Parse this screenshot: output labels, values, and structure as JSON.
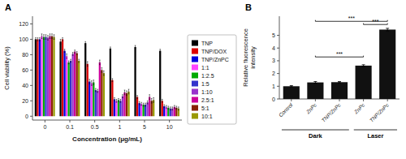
{
  "chart_data": [
    {
      "type": "bar",
      "categories": [
        "0",
        "0.1",
        "0.5",
        "1",
        "5",
        "10"
      ],
      "series": [
        {
          "name": "TNP",
          "color": "#000000",
          "values": [
            100,
            97,
            95,
            88,
            90,
            85
          ],
          "errors": [
            2,
            3,
            2,
            2,
            2,
            2
          ]
        },
        {
          "name": "TNP/DOX",
          "color": "#dd0000",
          "values": [
            100,
            100,
            68,
            47,
            25,
            20
          ],
          "errors": [
            2,
            2,
            3,
            2,
            2,
            2
          ]
        },
        {
          "name": "TNP/ZnPC",
          "color": "#0000dd",
          "values": [
            100,
            85,
            45,
            22,
            17,
            13
          ],
          "errors": [
            2,
            2,
            3,
            2,
            2,
            2
          ]
        },
        {
          "name": "1:1",
          "color": "#ff44ff",
          "values": [
            104,
            78,
            43,
            20,
            16,
            12
          ],
          "errors": [
            3,
            3,
            3,
            2,
            2,
            2
          ]
        },
        {
          "name": "1:2.5",
          "color": "#00aa00",
          "values": [
            103,
            70,
            44,
            21,
            15,
            11
          ],
          "errors": [
            3,
            2,
            3,
            2,
            2,
            2
          ]
        },
        {
          "name": "1:5",
          "color": "#3333cc",
          "values": [
            103,
            72,
            34,
            20,
            15,
            10
          ],
          "errors": [
            3,
            2,
            2,
            2,
            2,
            2
          ]
        },
        {
          "name": "1:10",
          "color": "#9933cc",
          "values": [
            102,
            81,
            33,
            26,
            18,
            10
          ],
          "errors": [
            3,
            2,
            2,
            2,
            2,
            2
          ]
        },
        {
          "name": "2.5:1",
          "color": "#cc0099",
          "values": [
            104,
            84,
            70,
            31,
            25,
            12
          ],
          "errors": [
            3,
            2,
            3,
            3,
            3,
            2
          ]
        },
        {
          "name": "5:1",
          "color": "#882200",
          "values": [
            104,
            82,
            60,
            30,
            20,
            11
          ],
          "errors": [
            3,
            2,
            3,
            3,
            3,
            2
          ]
        },
        {
          "name": "10:1",
          "color": "#999900",
          "values": [
            103,
            72,
            56,
            32,
            21,
            10
          ],
          "errors": [
            3,
            2,
            3,
            3,
            3,
            2
          ]
        }
      ],
      "xlabel": "Concentration (μg/mL)",
      "ylabel": "Cell viability (%)",
      "ylim": [
        -5,
        130
      ],
      "yticks": [
        0,
        20,
        40,
        60,
        80,
        100,
        120
      ],
      "grid": false,
      "legend": "right",
      "annotations": [
        {
          "label": "A"
        }
      ]
    },
    {
      "type": "bar",
      "categories": [
        "Control",
        "ZnPc",
        "TNP/ZnPc",
        "ZnPc",
        "TNP/ZnPc"
      ],
      "values": [
        1.0,
        1.3,
        1.32,
        2.62,
        5.45
      ],
      "errors": [
        0.05,
        0.07,
        0.05,
        0.07,
        0.1
      ],
      "color": "#111111",
      "ylabel": "Relative fluorescence\nintensity",
      "ylim": [
        0,
        6.5
      ],
      "yticks": [
        0,
        1,
        2,
        3,
        4,
        5
      ],
      "grid": false,
      "groups": [
        {
          "label": "Dark",
          "from": 0,
          "to": 2
        },
        {
          "label": "Laser",
          "from": 3,
          "to": 4
        }
      ],
      "annotations": [
        {
          "label": "B"
        },
        {
          "label": "***",
          "from": 1,
          "to": 3,
          "y": 3.3
        },
        {
          "label": "***",
          "from": 3,
          "to": 4,
          "y": 5.85
        },
        {
          "label": "***",
          "from": 1,
          "to": 4,
          "y": 6.1
        }
      ]
    }
  ]
}
